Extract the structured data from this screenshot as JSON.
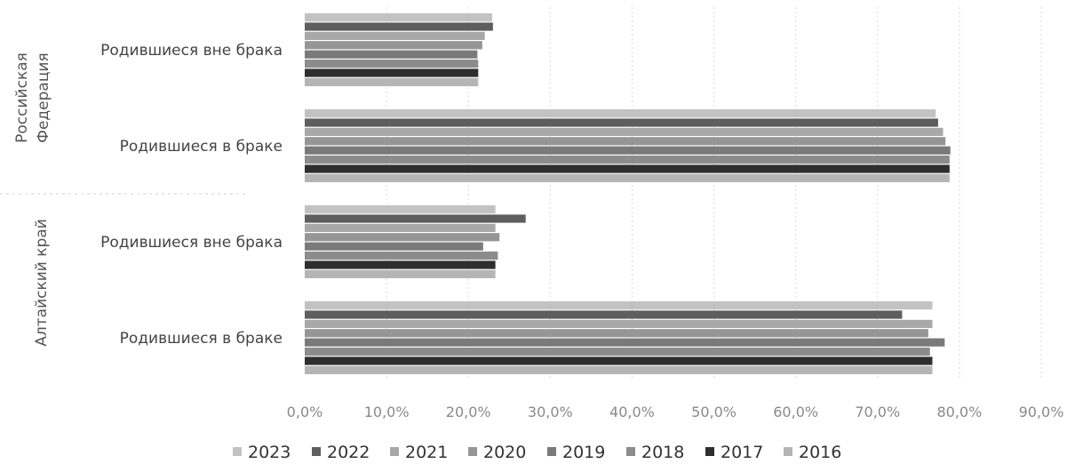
{
  "chart_data": {
    "type": "bar",
    "orientation": "horizontal",
    "grid": true,
    "legend_position": "bottom",
    "xlim": [
      0,
      90
    ],
    "x_ticks": [
      "0,0%",
      "10,0%",
      "20,0%",
      "30,0%",
      "40,0%",
      "50,0%",
      "60,0%",
      "70,0%",
      "80,0%",
      "90,0%"
    ],
    "groups": [
      {
        "name": "Российская Федерация",
        "categories": [
          {
            "label": "Родившиеся вне брака",
            "values": {
              "2023": 22.9,
              "2022": 23.0,
              "2021": 22.0,
              "2020": 21.7,
              "2019": 21.1,
              "2018": 21.2,
              "2017": 21.2,
              "2016": 21.2
            }
          },
          {
            "label": "Родившиеся в браке",
            "values": {
              "2023": 77.1,
              "2022": 77.4,
              "2021": 78.0,
              "2020": 78.3,
              "2019": 78.9,
              "2018": 78.8,
              "2017": 78.8,
              "2016": 78.8
            }
          }
        ]
      },
      {
        "name": "Алтайский край",
        "categories": [
          {
            "label": "Родившиеся вне брака",
            "values": {
              "2023": 23.3,
              "2022": 27.0,
              "2021": 23.3,
              "2020": 23.8,
              "2019": 21.8,
              "2018": 23.6,
              "2017": 23.3,
              "2016": 23.3
            }
          },
          {
            "label": "Родившиеся в браке",
            "values": {
              "2023": 76.7,
              "2022": 73.0,
              "2021": 76.7,
              "2020": 76.2,
              "2019": 78.2,
              "2018": 76.4,
              "2017": 76.7,
              "2016": 76.7
            }
          }
        ]
      }
    ],
    "series": [
      {
        "name": "2023",
        "color": "#c2c2c2"
      },
      {
        "name": "2022",
        "color": "#5e5e5e"
      },
      {
        "name": "2021",
        "color": "#a8a8a8"
      },
      {
        "name": "2020",
        "color": "#969696"
      },
      {
        "name": "2019",
        "color": "#7a7a7a"
      },
      {
        "name": "2018",
        "color": "#8c8c8c"
      },
      {
        "name": "2017",
        "color": "#2e2e2e"
      },
      {
        "name": "2016",
        "color": "#b5b5b5"
      }
    ]
  }
}
